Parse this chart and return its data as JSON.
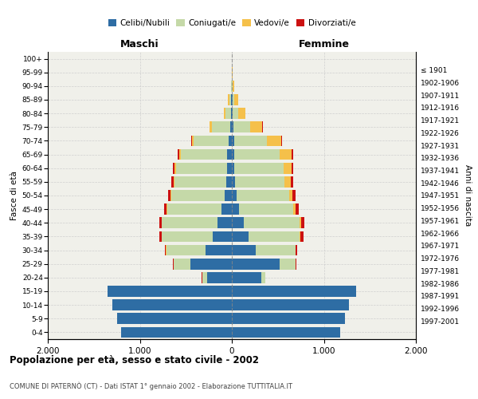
{
  "age_groups": [
    "0-4",
    "5-9",
    "10-14",
    "15-19",
    "20-24",
    "25-29",
    "30-34",
    "35-39",
    "40-44",
    "45-49",
    "50-54",
    "55-59",
    "60-64",
    "65-69",
    "70-74",
    "75-79",
    "80-84",
    "85-89",
    "90-94",
    "95-99",
    "100+"
  ],
  "birth_years": [
    "1997-2001",
    "1992-1996",
    "1987-1991",
    "1982-1986",
    "1977-1981",
    "1972-1976",
    "1967-1971",
    "1962-1966",
    "1957-1961",
    "1952-1956",
    "1947-1951",
    "1942-1946",
    "1937-1941",
    "1932-1936",
    "1927-1931",
    "1922-1926",
    "1917-1921",
    "1912-1916",
    "1907-1911",
    "1902-1906",
    "≤ 1901"
  ],
  "male": {
    "celibi": [
      1200,
      1250,
      1300,
      1350,
      270,
      450,
      290,
      210,
      160,
      110,
      80,
      60,
      55,
      50,
      35,
      20,
      10,
      5,
      2,
      0,
      0
    ],
    "coniugati": [
      0,
      0,
      0,
      0,
      50,
      180,
      420,
      550,
      600,
      590,
      580,
      560,
      550,
      500,
      380,
      200,
      60,
      25,
      5,
      2,
      0
    ],
    "vedovi": [
      0,
      0,
      0,
      0,
      0,
      5,
      5,
      5,
      5,
      10,
      10,
      15,
      20,
      25,
      20,
      20,
      20,
      10,
      3,
      0,
      0
    ],
    "divorziati": [
      0,
      0,
      0,
      0,
      5,
      5,
      15,
      20,
      25,
      25,
      25,
      20,
      20,
      15,
      10,
      5,
      0,
      0,
      0,
      0,
      0
    ]
  },
  "female": {
    "nubili": [
      1180,
      1230,
      1270,
      1350,
      320,
      520,
      260,
      180,
      130,
      80,
      50,
      35,
      30,
      30,
      25,
      20,
      10,
      5,
      2,
      0,
      0
    ],
    "coniugate": [
      0,
      0,
      0,
      0,
      45,
      170,
      430,
      560,
      610,
      590,
      570,
      540,
      530,
      490,
      360,
      180,
      55,
      25,
      5,
      2,
      0
    ],
    "vedove": [
      0,
      0,
      0,
      0,
      0,
      5,
      5,
      5,
      10,
      20,
      40,
      70,
      90,
      130,
      150,
      130,
      80,
      35,
      15,
      3,
      0
    ],
    "divorziate": [
      0,
      0,
      0,
      0,
      0,
      5,
      15,
      30,
      35,
      35,
      30,
      20,
      20,
      15,
      10,
      5,
      0,
      0,
      0,
      0,
      0
    ]
  },
  "colors": {
    "celibi": "#2e6da4",
    "coniugati": "#c5d9a8",
    "vedovi": "#f5c04a",
    "divorziati": "#cc1111"
  },
  "xlim": 2000,
  "title": "Popolazione per età, sesso e stato civile - 2002",
  "subtitle": "COMUNE DI PATERNÒ (CT) - Dati ISTAT 1° gennaio 2002 - Elaborazione TUTTITALIA.IT",
  "xlabel_left": "Maschi",
  "xlabel_right": "Femmine",
  "ylabel_left": "Fasce di età",
  "ylabel_right": "Anni di nascita",
  "bg_color": "#ffffff",
  "plot_bg": "#f0f0ea",
  "grid_color": "#cccccc"
}
